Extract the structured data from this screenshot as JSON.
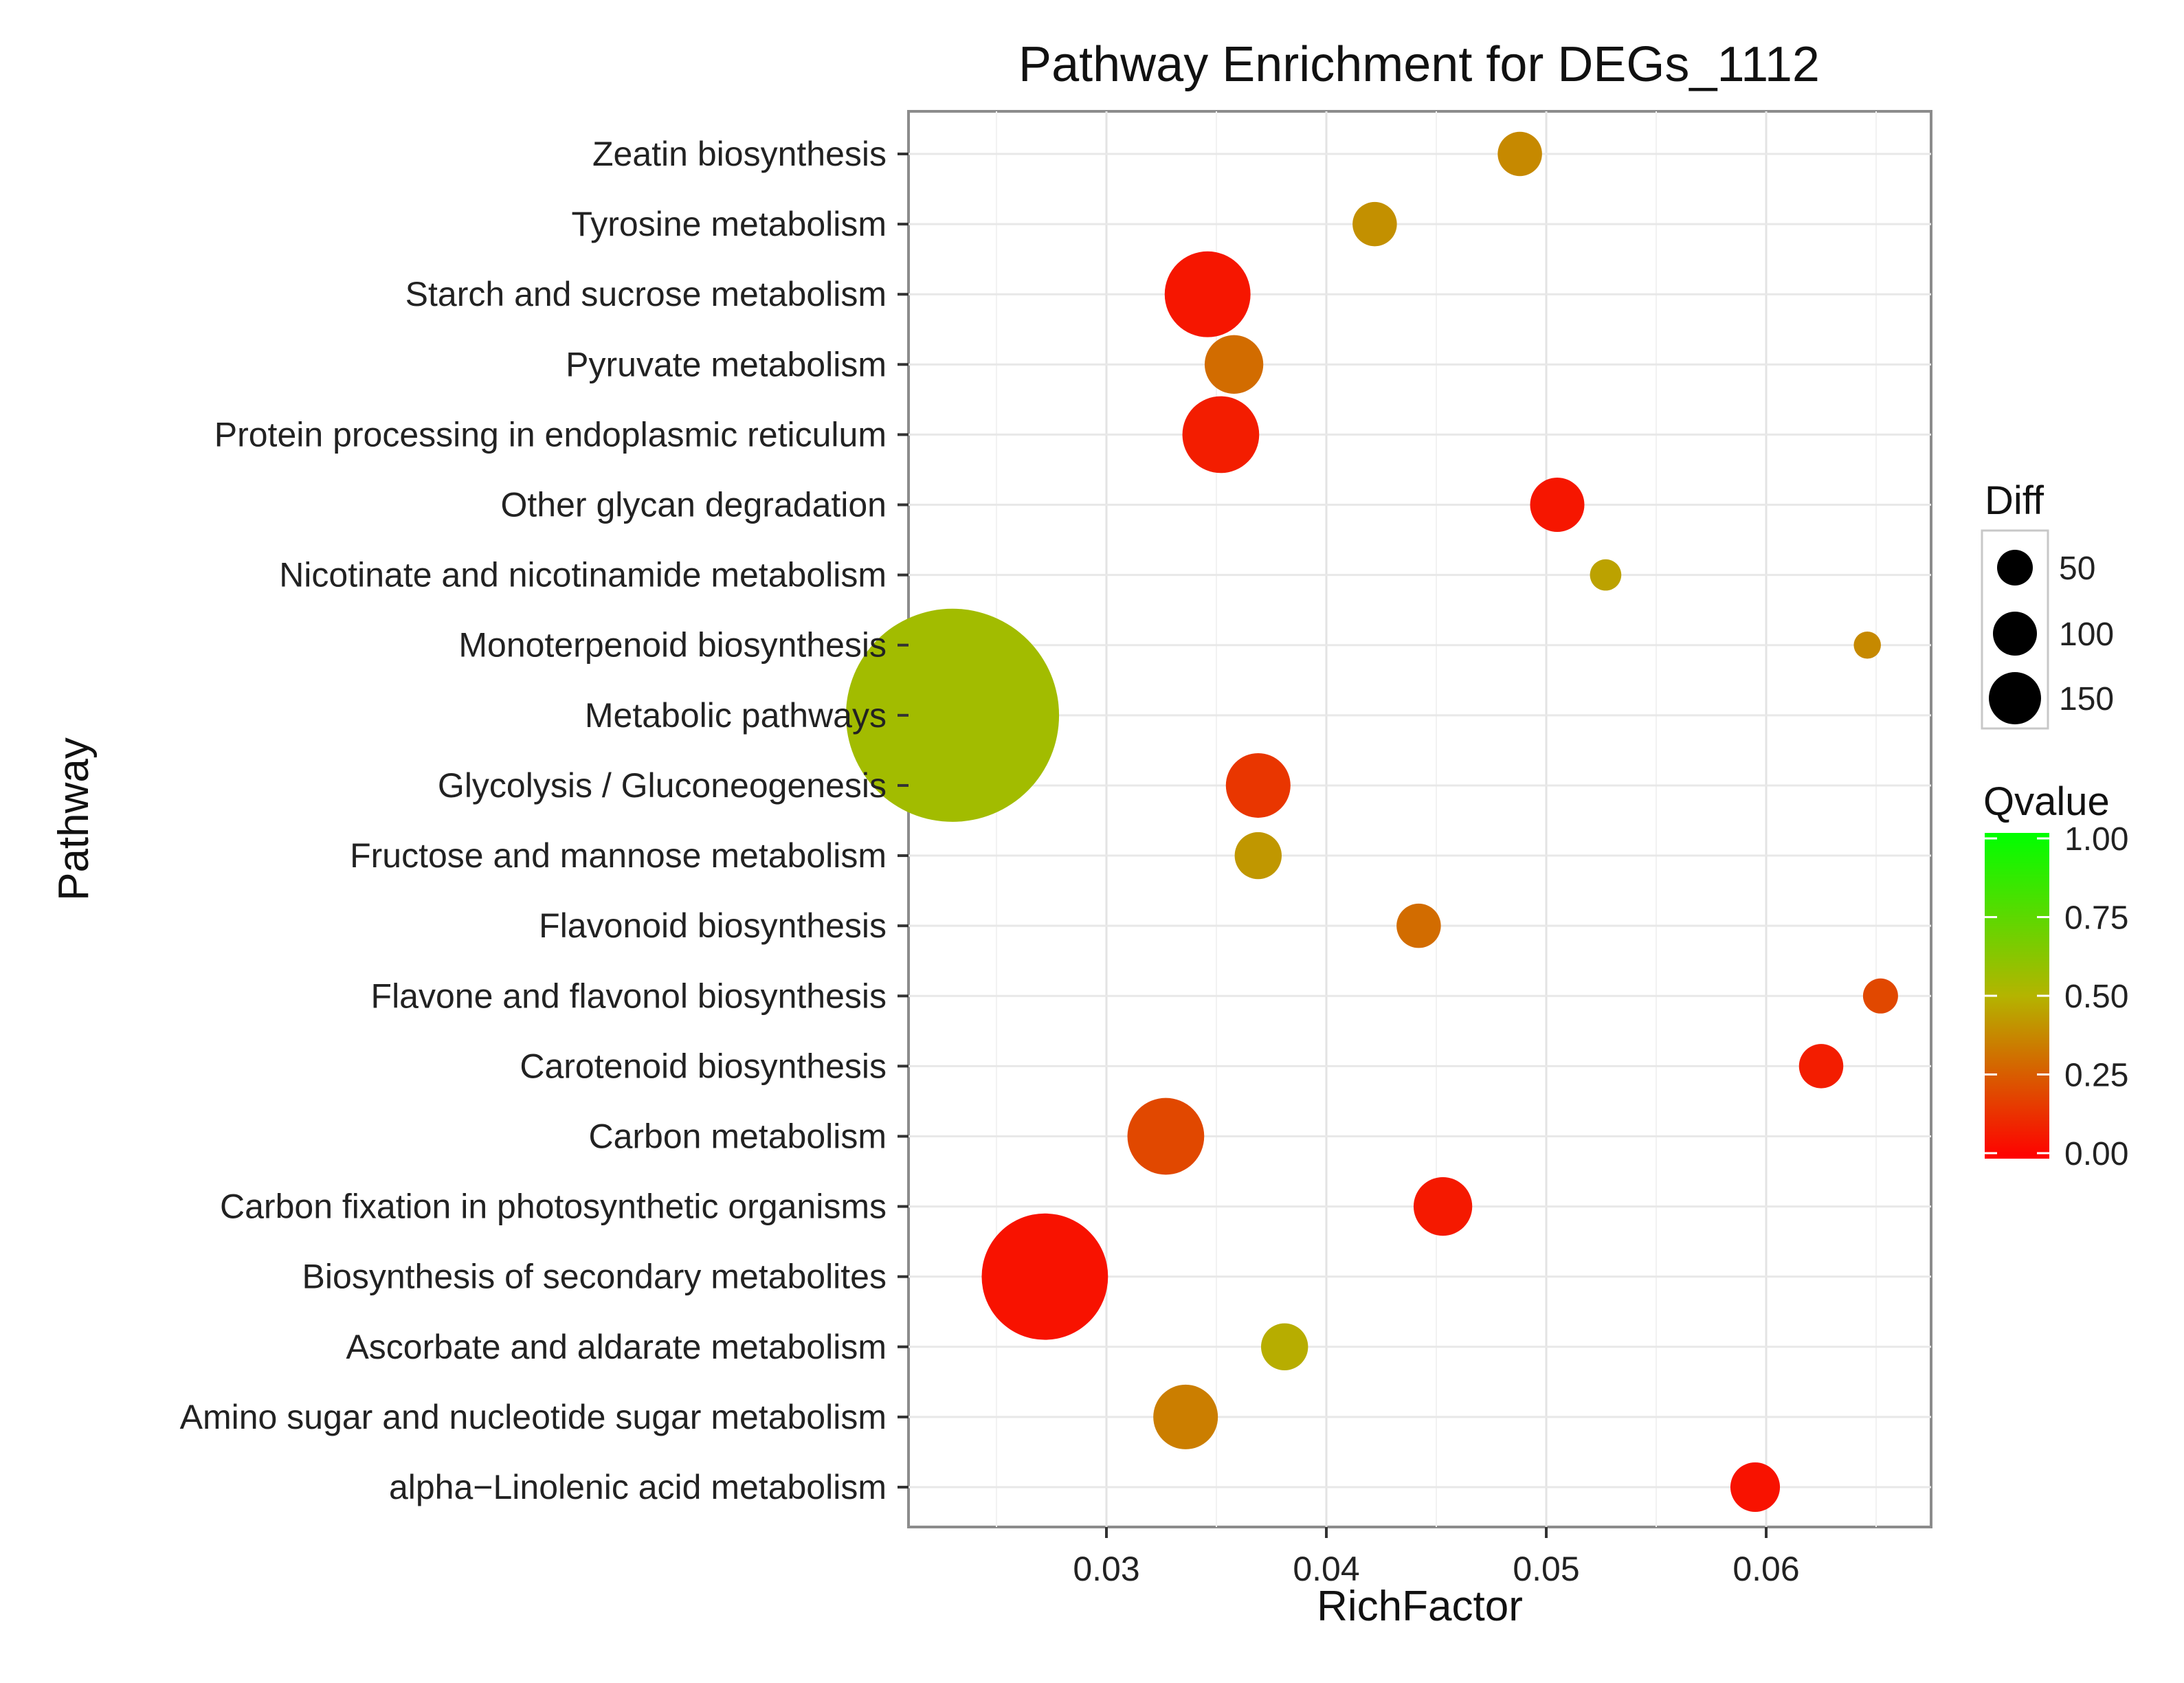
{
  "chart_data": {
    "type": "scatter",
    "title": "Pathway Enrichment for DEGs_1112",
    "xlabel": "RichFactor",
    "ylabel": "Pathway",
    "xlim": [
      0.021,
      0.0675
    ],
    "xticks": [
      0.03,
      0.04,
      0.05,
      0.06
    ],
    "xtick_labels": [
      "0.03",
      "0.04",
      "0.05",
      "0.06"
    ],
    "grid": true,
    "categories": [
      "Zeatin biosynthesis",
      "Tyrosine metabolism",
      "Starch and sucrose metabolism",
      "Pyruvate metabolism",
      "Protein processing in endoplasmic reticulum",
      "Other glycan degradation",
      "Nicotinate and nicotinamide metabolism",
      "Monoterpenoid biosynthesis",
      "Metabolic pathways",
      "Glycolysis / Gluconeogenesis",
      "Fructose and mannose metabolism",
      "Flavonoid biosynthesis",
      "Flavone and flavonol biosynthesis",
      "Carotenoid biosynthesis",
      "Carbon metabolism",
      "Carbon fixation in photosynthetic organisms",
      "Biosynthesis of secondary metabolites",
      "Ascorbate and aldarate metabolism",
      "Amino sugar and nucleotide sugar metabolism",
      "alpha−Linolenic acid metabolism"
    ],
    "points": [
      {
        "pathway": "Zeatin biosynthesis",
        "richfactor": 0.0488,
        "diff": 8,
        "qvalue": 0.38
      },
      {
        "pathway": "Tyrosine metabolism",
        "richfactor": 0.0422,
        "diff": 8,
        "qvalue": 0.4
      },
      {
        "pathway": "Starch and sucrose metabolism",
        "richfactor": 0.0346,
        "diff": 30,
        "qvalue": 0.06
      },
      {
        "pathway": "Pyruvate metabolism",
        "richfactor": 0.0358,
        "diff": 14,
        "qvalue": 0.3
      },
      {
        "pathway": "Protein processing in endoplasmic reticulum",
        "richfactor": 0.0352,
        "diff": 24,
        "qvalue": 0.08
      },
      {
        "pathway": "Other glycan degradation",
        "richfactor": 0.0505,
        "diff": 12,
        "qvalue": 0.06
      },
      {
        "pathway": "Nicotinate and nicotinamide metabolism",
        "richfactor": 0.0527,
        "diff": 4,
        "qvalue": 0.45
      },
      {
        "pathway": "Monoterpenoid biosynthesis",
        "richfactor": 0.0646,
        "diff": 3,
        "qvalue": 0.38
      },
      {
        "pathway": "Metabolic pathways",
        "richfactor": 0.023,
        "diff": 185,
        "qvalue": 0.55
      },
      {
        "pathway": "Glycolysis / Gluconeogenesis",
        "richfactor": 0.0369,
        "diff": 17,
        "qvalue": 0.15
      },
      {
        "pathway": "Fructose and mannose metabolism",
        "richfactor": 0.0369,
        "diff": 9,
        "qvalue": 0.42
      },
      {
        "pathway": "Flavonoid biosynthesis",
        "richfactor": 0.0442,
        "diff": 8,
        "qvalue": 0.3
      },
      {
        "pathway": "Flavone and flavonol biosynthesis",
        "richfactor": 0.0652,
        "diff": 5,
        "qvalue": 0.2
      },
      {
        "pathway": "Carotenoid biosynthesis",
        "richfactor": 0.0625,
        "diff": 8,
        "qvalue": 0.08
      },
      {
        "pathway": "Carbon metabolism",
        "richfactor": 0.0327,
        "diff": 24,
        "qvalue": 0.2
      },
      {
        "pathway": "Carbon fixation in photosynthetic organisms",
        "richfactor": 0.0453,
        "diff": 14,
        "qvalue": 0.07
      },
      {
        "pathway": "Biosynthesis of secondary metabolites",
        "richfactor": 0.0272,
        "diff": 65,
        "qvalue": 0.05
      },
      {
        "pathway": "Ascorbate and aldarate metabolism",
        "richfactor": 0.0381,
        "diff": 9,
        "qvalue": 0.48
      },
      {
        "pathway": "Amino sugar and nucleotide sugar metabolism",
        "richfactor": 0.0336,
        "diff": 17,
        "qvalue": 0.35
      },
      {
        "pathway": "alpha−Linolenic acid metabolism",
        "richfactor": 0.0595,
        "diff": 10,
        "qvalue": 0.05
      }
    ],
    "size_legend": {
      "title": "Diff",
      "breaks": [
        50,
        100,
        150
      ],
      "labels": [
        "50",
        "100",
        "150"
      ]
    },
    "color_legend": {
      "title": "Qvalue",
      "breaks": [
        1.0,
        0.75,
        0.5,
        0.25,
        0.0
      ],
      "labels": [
        "1.00",
        "0.75",
        "0.50",
        "0.25",
        "0.00"
      ],
      "low_color": "#ff0000",
      "mid_color": "#b4b400",
      "high_color": "#00ff00"
    },
    "legend_position": "right"
  }
}
